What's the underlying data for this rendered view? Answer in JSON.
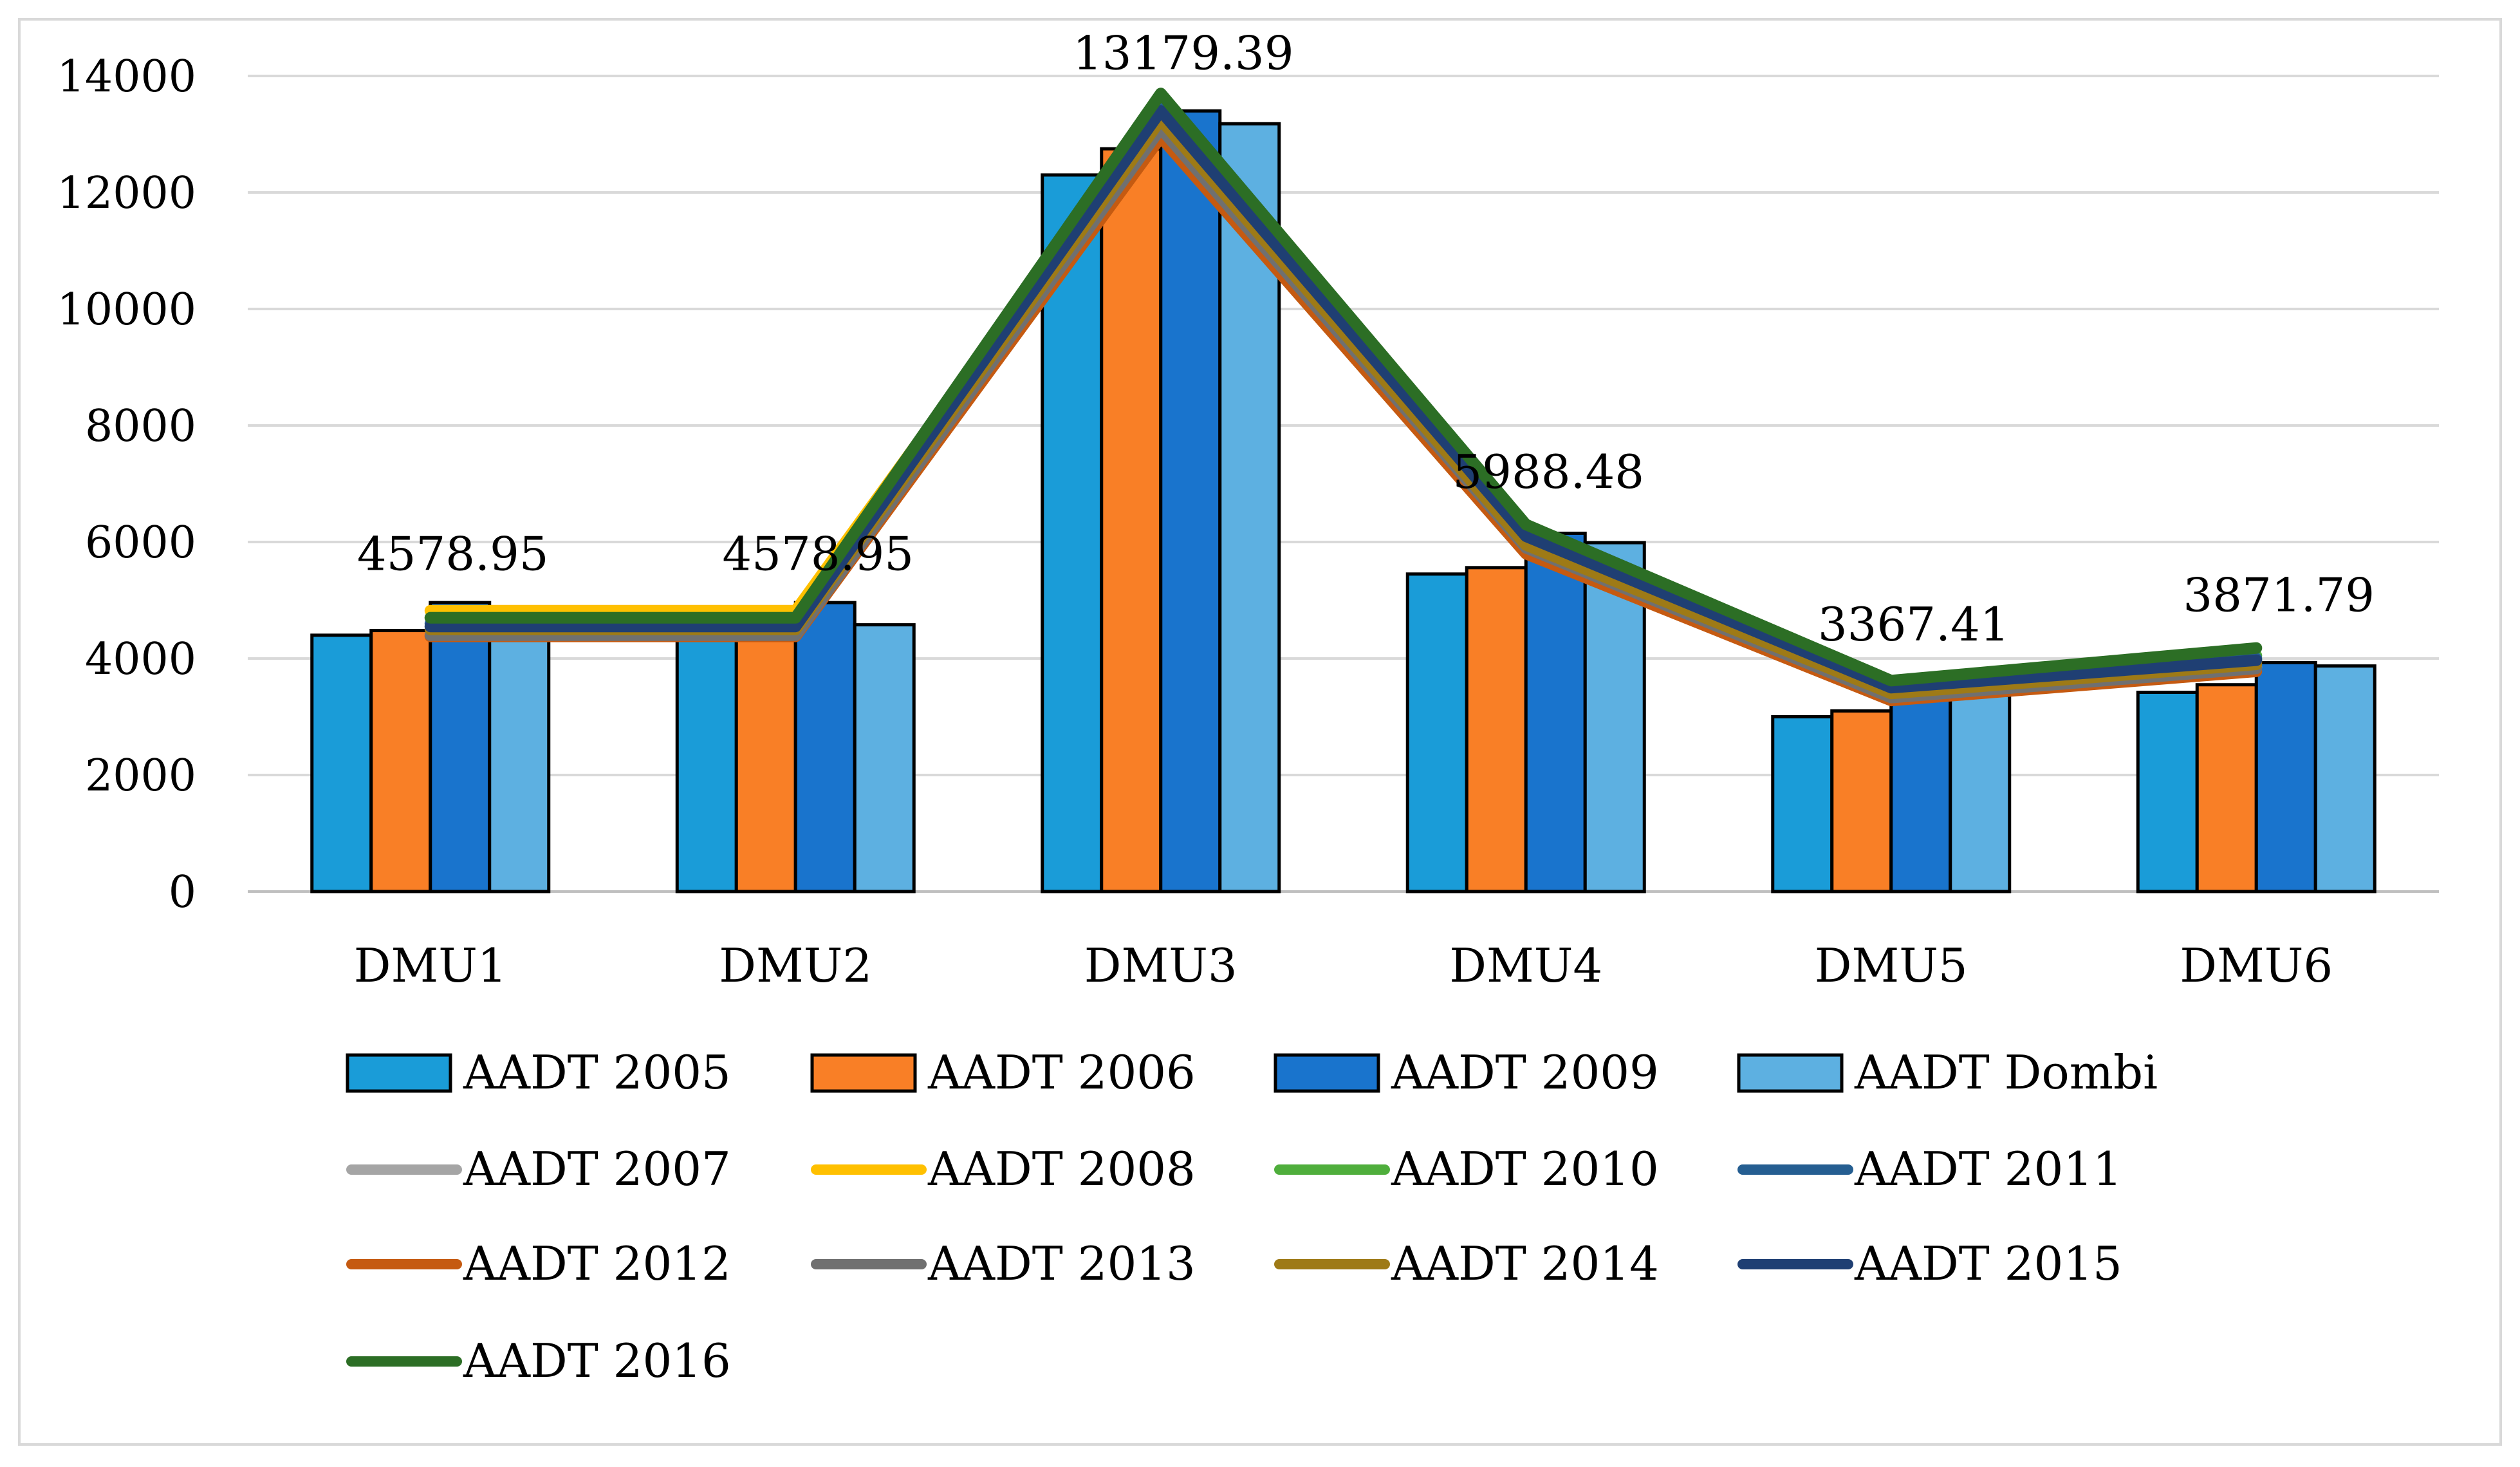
{
  "chart_data": {
    "type": "bar",
    "categories": [
      "DMU1",
      "DMU2",
      "DMU3",
      "DMU4",
      "DMU5",
      "DMU6"
    ],
    "ylim": [
      0,
      14000
    ],
    "yticks": [
      0,
      2000,
      4000,
      6000,
      8000,
      10000,
      12000,
      14000
    ],
    "grid": true,
    "legend_position": "bottom",
    "bar_series": [
      {
        "name": "AADT 2005",
        "color": "#1a9cd8",
        "values": [
          4400,
          4400,
          12300,
          5450,
          3000,
          3420
        ]
      },
      {
        "name": "AADT 2006",
        "color": "#f97f26",
        "values": [
          4480,
          4480,
          12750,
          5560,
          3100,
          3550
        ]
      },
      {
        "name": "AADT 2009",
        "color": "#1974cd",
        "values": [
          4960,
          4960,
          13400,
          6150,
          3460,
          3930
        ]
      },
      {
        "name": "AADT Dombi",
        "color": "#5db0e1",
        "values": [
          4578.95,
          4578.95,
          13179.39,
          5988.48,
          3367.41,
          3871.79
        ]
      }
    ],
    "line_series": [
      {
        "name": "AADT 2007",
        "color": "#a5a5a5",
        "values": [
          4550,
          4550,
          13150,
          5950,
          3380,
          3850
        ]
      },
      {
        "name": "AADT 2008",
        "color": "#ffc000",
        "values": [
          4820,
          4820,
          13450,
          6100,
          3450,
          3950
        ]
      },
      {
        "name": "AADT 2010",
        "color": "#4fae3c",
        "values": [
          4700,
          4700,
          13550,
          6200,
          3550,
          4050
        ]
      },
      {
        "name": "AADT 2011",
        "color": "#255e91",
        "values": [
          4600,
          4600,
          13450,
          6150,
          3500,
          4000
        ]
      },
      {
        "name": "AADT 2012",
        "color": "#c55a11",
        "values": [
          4380,
          4380,
          12950,
          5800,
          3280,
          3780
        ]
      },
      {
        "name": "AADT 2013",
        "color": "#707070",
        "values": [
          4400,
          4400,
          13100,
          5900,
          3330,
          3830
        ]
      },
      {
        "name": "AADT 2014",
        "color": "#9e7a16",
        "values": [
          4500,
          4500,
          13250,
          5950,
          3400,
          3900
        ]
      },
      {
        "name": "AADT 2015",
        "color": "#1f3f73",
        "values": [
          4550,
          4550,
          13400,
          6100,
          3500,
          3970
        ]
      },
      {
        "name": "AADT 2016",
        "color": "#2c6e25",
        "values": [
          4700,
          4700,
          13700,
          6300,
          3620,
          4180
        ]
      }
    ],
    "data_labels": [
      "4578.95",
      "4578.95",
      "13179.39",
      "5988.48",
      "3367.41",
      "3871.79"
    ],
    "title": "",
    "xlabel": "",
    "ylabel": ""
  }
}
